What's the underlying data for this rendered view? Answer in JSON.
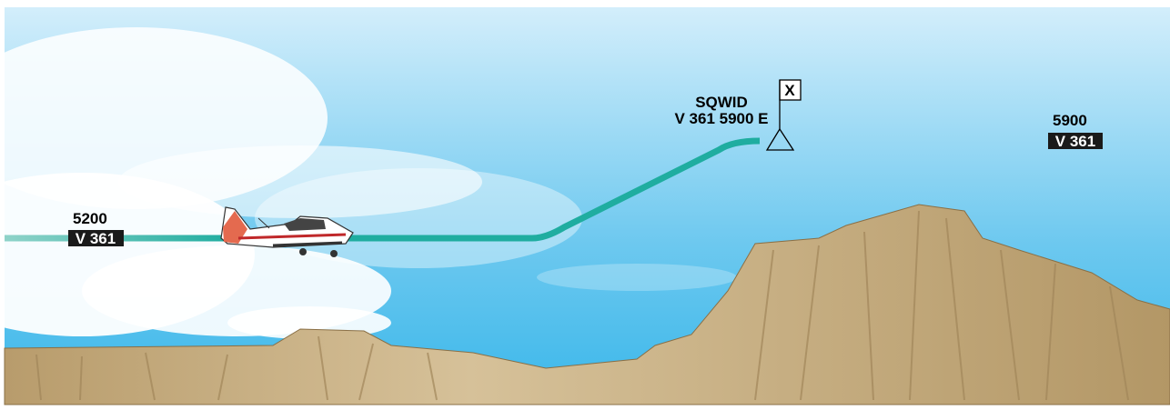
{
  "segments": [
    {
      "altitude": "5200",
      "airway": "V 361"
    },
    {
      "altitude": "5900",
      "airway": "V 361"
    }
  ],
  "fix": {
    "name": "SQWID",
    "detail": "V 361 5900 E",
    "symbol": "X"
  }
}
